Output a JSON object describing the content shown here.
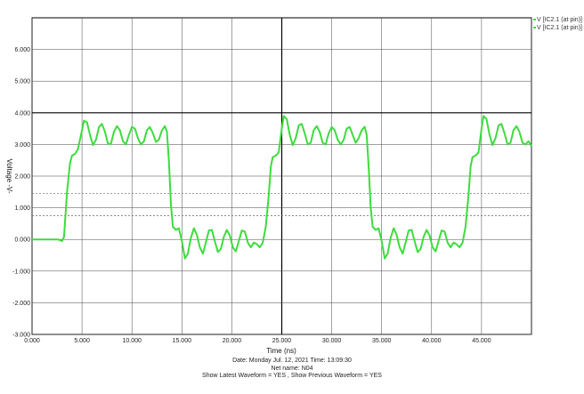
{
  "chart_data": {
    "type": "line",
    "title": "",
    "xlabel": "Time   (ns)",
    "ylabel": "Voltage  -V-",
    "xlim": [
      0,
      50000
    ],
    "ylim": [
      -3000,
      7000
    ],
    "x_ticks": [
      "0.000",
      "5.000",
      "10.000",
      "15.000",
      "20.000",
      "25.000",
      "30.000",
      "35.000",
      "40.000",
      "45.000"
    ],
    "y_ticks": [
      "-3.000",
      "-2.000",
      "-1.000",
      "0.000",
      "1.000",
      "2.000",
      "3.000",
      "4.000",
      "5.000",
      "6.000"
    ],
    "grid": true,
    "legend": [
      "V [IC2.1 (at pin)]",
      "V [IC2.1 (at pin)]"
    ],
    "legend_position": "top-right",
    "threshold_lines": [
      1450,
      750
    ],
    "series": [
      {
        "color": "#3ddc3d",
        "points": [
          [
            0,
            0
          ],
          [
            2600,
            0
          ],
          [
            3000,
            -50
          ],
          [
            3200,
            80
          ],
          [
            3500,
            1500
          ],
          [
            3800,
            2400
          ],
          [
            4000,
            2650
          ],
          [
            4300,
            2700
          ],
          [
            4600,
            2850
          ],
          [
            4900,
            3300
          ],
          [
            5200,
            3750
          ],
          [
            5500,
            3700
          ],
          [
            5800,
            3300
          ],
          [
            6100,
            2980
          ],
          [
            6400,
            3150
          ],
          [
            6700,
            3550
          ],
          [
            7000,
            3650
          ],
          [
            7300,
            3400
          ],
          [
            7600,
            3020
          ],
          [
            7900,
            3020
          ],
          [
            8200,
            3400
          ],
          [
            8500,
            3580
          ],
          [
            8800,
            3450
          ],
          [
            9100,
            3100
          ],
          [
            9400,
            3000
          ],
          [
            9700,
            3300
          ],
          [
            10000,
            3550
          ],
          [
            10300,
            3500
          ],
          [
            10600,
            3200
          ],
          [
            10900,
            3000
          ],
          [
            11200,
            3100
          ],
          [
            11500,
            3450
          ],
          [
            11800,
            3550
          ],
          [
            12100,
            3350
          ],
          [
            12400,
            3080
          ],
          [
            12700,
            3150
          ],
          [
            13000,
            3450
          ],
          [
            13300,
            3580
          ],
          [
            13500,
            3400
          ],
          [
            13700,
            2500
          ],
          [
            13900,
            1100
          ],
          [
            14100,
            400
          ],
          [
            14400,
            300
          ],
          [
            14700,
            350
          ],
          [
            15000,
            -50
          ],
          [
            15300,
            -600
          ],
          [
            15600,
            -450
          ],
          [
            15900,
            50
          ],
          [
            16200,
            350
          ],
          [
            16500,
            150
          ],
          [
            16800,
            -250
          ],
          [
            17100,
            -450
          ],
          [
            17400,
            -100
          ],
          [
            17700,
            280
          ],
          [
            18000,
            300
          ],
          [
            18300,
            -50
          ],
          [
            18600,
            -400
          ],
          [
            18900,
            -300
          ],
          [
            19200,
            80
          ],
          [
            19500,
            300
          ],
          [
            19800,
            120
          ],
          [
            20100,
            -250
          ],
          [
            20400,
            -380
          ],
          [
            20700,
            -50
          ],
          [
            21000,
            280
          ],
          [
            21300,
            250
          ],
          [
            21600,
            -100
          ],
          [
            21900,
            -250
          ],
          [
            22200,
            -100
          ],
          [
            22500,
            -150
          ],
          [
            22800,
            -250
          ],
          [
            23100,
            -100
          ],
          [
            23400,
            400
          ],
          [
            23700,
            1400
          ],
          [
            23900,
            2300
          ],
          [
            24100,
            2600
          ],
          [
            24400,
            2650
          ],
          [
            24700,
            2750
          ],
          [
            25000,
            3500
          ],
          [
            25200,
            3900
          ],
          [
            25500,
            3800
          ],
          [
            25800,
            3300
          ],
          [
            26100,
            2980
          ],
          [
            26400,
            3200
          ],
          [
            26700,
            3600
          ],
          [
            27000,
            3650
          ],
          [
            27300,
            3350
          ],
          [
            27600,
            3000
          ],
          [
            27900,
            3050
          ],
          [
            28200,
            3450
          ],
          [
            28500,
            3580
          ],
          [
            28800,
            3400
          ],
          [
            29100,
            3050
          ],
          [
            29400,
            3000
          ],
          [
            29700,
            3350
          ],
          [
            30000,
            3550
          ],
          [
            30300,
            3450
          ],
          [
            30600,
            3150
          ],
          [
            30900,
            3000
          ],
          [
            31200,
            3150
          ],
          [
            31500,
            3500
          ],
          [
            31800,
            3550
          ],
          [
            32100,
            3300
          ],
          [
            32400,
            3050
          ],
          [
            32700,
            3200
          ],
          [
            33000,
            3450
          ],
          [
            33300,
            3560
          ],
          [
            33500,
            3300
          ],
          [
            33700,
            2300
          ],
          [
            33900,
            1000
          ],
          [
            34100,
            400
          ],
          [
            34400,
            300
          ],
          [
            34700,
            350
          ],
          [
            35000,
            -50
          ],
          [
            35300,
            -600
          ],
          [
            35600,
            -450
          ],
          [
            35900,
            50
          ],
          [
            36200,
            350
          ],
          [
            36500,
            150
          ],
          [
            36800,
            -250
          ],
          [
            37100,
            -450
          ],
          [
            37400,
            -100
          ],
          [
            37700,
            280
          ],
          [
            38000,
            300
          ],
          [
            38300,
            -50
          ],
          [
            38600,
            -400
          ],
          [
            38900,
            -300
          ],
          [
            39200,
            80
          ],
          [
            39500,
            300
          ],
          [
            39800,
            120
          ],
          [
            40100,
            -250
          ],
          [
            40400,
            -380
          ],
          [
            40700,
            -50
          ],
          [
            41000,
            280
          ],
          [
            41300,
            250
          ],
          [
            41600,
            -100
          ],
          [
            41900,
            -250
          ],
          [
            42200,
            -100
          ],
          [
            42500,
            -150
          ],
          [
            42800,
            -250
          ],
          [
            43100,
            -100
          ],
          [
            43400,
            400
          ],
          [
            43700,
            1400
          ],
          [
            43900,
            2300
          ],
          [
            44100,
            2600
          ],
          [
            44400,
            2650
          ],
          [
            44700,
            2750
          ],
          [
            45000,
            3500
          ],
          [
            45200,
            3900
          ],
          [
            45500,
            3800
          ],
          [
            45800,
            3300
          ],
          [
            46100,
            2980
          ],
          [
            46400,
            3200
          ],
          [
            46700,
            3600
          ],
          [
            47000,
            3650
          ],
          [
            47300,
            3350
          ],
          [
            47600,
            3000
          ],
          [
            47900,
            3050
          ],
          [
            48200,
            3450
          ],
          [
            48500,
            3580
          ],
          [
            48800,
            3400
          ],
          [
            49100,
            3050
          ],
          [
            49400,
            3000
          ],
          [
            49700,
            3100
          ],
          [
            50000,
            2950
          ]
        ]
      }
    ]
  },
  "footer": {
    "date_line": "Date: Monday Jul. 12, 2021   Time: 13:09:30",
    "net_line": "Net name: N04",
    "waveform_line": "Show Latest Waveform = YES ,  Show Previous Waveform = YES"
  }
}
